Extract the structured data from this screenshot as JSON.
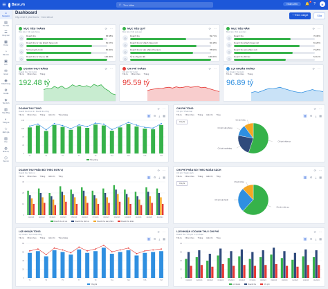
{
  "app": {
    "logo": "Base.vn",
    "search_placeholder": "Tìm kiếm",
    "user_pill": "Nhân viên",
    "notif_count": "1",
    "avatar": "N"
  },
  "sidebar": {
    "items": [
      {
        "icon": "⌂",
        "label": "Navigation"
      },
      {
        "icon": "▤",
        "label": "Tin nhắn"
      },
      {
        "icon": "☰",
        "label": "Công việc"
      },
      {
        "icon": "▦",
        "label": "Dự án"
      },
      {
        "icon": "◔",
        "label": "Báo cáo"
      },
      {
        "icon": "▣",
        "label": "Lịch"
      },
      {
        "icon": "✉",
        "label": "Email"
      },
      {
        "icon": "◉",
        "label": "Khách hàng"
      },
      {
        "icon": "⚙",
        "label": "Cài đặt"
      },
      {
        "icon": "◈",
        "label": "Tài chính"
      },
      {
        "icon": "▥",
        "label": "Hợp đồng"
      },
      {
        "icon": "◐",
        "label": "Thống kê"
      },
      {
        "icon": "☆",
        "label": "Đánh giá"
      },
      {
        "icon": "▧",
        "label": "Kho"
      },
      {
        "icon": "◍",
        "label": "Nhân sự"
      },
      {
        "icon": "⬡",
        "label": "Tiện ích"
      }
    ]
  },
  "header": {
    "title": "Dashboard",
    "subtitle": "Cập nhật 5 phút trước · Xem tất cả",
    "btn_primary": "+ Thêm widget",
    "btn_ghost": "Sửa"
  },
  "targets": [
    {
      "title": "Mục tiêu tháng",
      "subtitle": "Mục tiêu / Kết quả tháng",
      "rows": [
        {
          "label": "Doanh thu",
          "value": "95.58%",
          "pct": 0.95
        },
        {
          "label": "Doanh thu từ các khách hàng mới",
          "value": "81.67%",
          "pct": 0.81
        },
        {
          "label": "Số lượng KH mới",
          "value": "80.00%",
          "pct": 0.8
        },
        {
          "label": "Doanh thu từ lớp ưu đãi",
          "value": "100.00%",
          "pct": 1.0
        }
      ]
    },
    {
      "title": "Mục tiêu quý",
      "subtitle": "Mục tiêu / Kết quả quý",
      "rows": [
        {
          "label": "Doanh thu",
          "value": "69.71%",
          "pct": 0.69
        },
        {
          "label": "Doanh thu từ khách hàng mới",
          "value": "82.48%",
          "pct": 0.82
        },
        {
          "label": "Doanh thu từ sản phẩm Premium",
          "value": "78.60%",
          "pct": 0.78
        },
        {
          "label": "Tỷ lệ chuyển đổi",
          "value": "100.00%",
          "pct": 1.0
        }
      ]
    },
    {
      "title": "Mục tiêu năm",
      "subtitle": "Mục tiêu / Kết quả năm",
      "rows": [
        {
          "label": "Doanh thu",
          "value": "70.38%",
          "pct": 0.7
        },
        {
          "label": "Doanh thu khách hàng mới",
          "value": "81.28%",
          "pct": 0.81
        },
        {
          "label": "Doanh thu sản phẩm mới",
          "value": "73.25%",
          "pct": 0.73
        },
        {
          "label": "Doanh thu đối tác",
          "value": "64.14%",
          "pct": 0.64
        }
      ]
    }
  ],
  "kpis": [
    {
      "title": "Doanh thu tháng",
      "subtitle": "Doanh thu / Kỳ trước",
      "filters": [
        "Tất cả",
        "Nhóm theo",
        "Tháng"
      ],
      "value": "192.48 tỷ",
      "color": "#36b24a",
      "fill": "#c8ecd0",
      "points": [
        0.55,
        0.6,
        0.58,
        0.7,
        0.62,
        0.72,
        0.6,
        0.64,
        0.78,
        0.7,
        0.76,
        0.68,
        0.74,
        0.66,
        0.8,
        0.72,
        0.78,
        0.6,
        0.5,
        0.35,
        0.3
      ]
    },
    {
      "title": "Chi phí tháng",
      "subtitle": "Chi phí / Kỳ trước",
      "filters": [
        "Tất cả",
        "Nhóm theo",
        "Tháng"
      ],
      "value": "95.59 tỷ",
      "color": "#e53935",
      "fill": "#f8cdcd",
      "points": [
        0.5,
        0.55,
        0.58,
        0.62,
        0.6,
        0.64,
        0.66,
        0.62,
        0.68,
        0.64,
        0.66,
        0.7,
        0.66,
        0.68,
        0.7,
        0.64,
        0.66,
        0.6,
        0.55,
        0.5,
        0.45
      ]
    },
    {
      "title": "Lợi nhuận tháng",
      "subtitle": "Lợi nhuận / Kỳ trước",
      "filters": [
        "Tất cả",
        "Nhóm theo",
        "Tháng"
      ],
      "value": "96.89 tỷ",
      "color": "#2f8fe0",
      "fill": "#c9e2f7",
      "points": [
        0.4,
        0.45,
        0.42,
        0.48,
        0.55,
        0.6,
        0.58,
        0.62,
        0.66,
        0.6,
        0.55,
        0.5,
        0.45,
        0.42,
        0.4,
        0.45,
        0.5,
        0.55,
        0.5,
        0.48,
        0.45
      ]
    }
  ],
  "charts": {
    "revenue": {
      "title": "Doanh thu tổng",
      "subtitle": "Doanh thu thực tế / Doanh thu tổng",
      "filters": [
        "Tất cả",
        "Nhóm theo",
        "Tháng",
        "Hiển thị",
        "Tổng tháng"
      ],
      "legend": [
        "Tổng tăng"
      ],
      "chart_data": {
        "type": "bar",
        "categories": [
          "T1",
          "T2",
          "T3",
          "T4",
          "T5",
          "T6",
          "T7",
          "T8",
          "T9",
          "T10",
          "T11",
          "T12",
          "T13",
          "T14",
          "T15",
          "T16",
          "T17"
        ],
        "values": [
          110,
          118,
          95,
          120,
          112,
          100,
          115,
          108,
          122,
          118,
          96,
          110,
          125,
          114,
          105,
          102,
          120
        ],
        "ylim": [
          0,
          140
        ],
        "yticks": [
          "0",
          "35",
          "70",
          "105",
          "140"
        ]
      }
    },
    "expense": {
      "title": "Chi phí tổng",
      "subtitle": "Chi phí / Phân loại",
      "filters": [
        "Tất cả",
        "Nhóm theo",
        "Tháng",
        "Hiển thị",
        "Tổng"
      ],
      "select": "Chi phí",
      "slice_labels": [
        "Chi phí nhân sự",
        "Chi phí marketing",
        "Chi phí văn phòng",
        "Chi phí khác"
      ],
      "chart_data": {
        "type": "pie",
        "labels": [
          "Chi phí nhân sự",
          "Chi phí marketing",
          "Chi phí văn phòng",
          "Chi phí khác"
        ],
        "values": [
          55,
          23,
          12,
          10
        ],
        "colors": [
          "#36b24a",
          "#2f4a7c",
          "#2f8fe0",
          "#f5a623"
        ]
      }
    },
    "revenue_channel": {
      "title": "Doanh thu phân bổ theo đơn vị",
      "subtitle": "Doanh thu / Đơn vị",
      "filters": [
        "Tất cả",
        "Nhóm theo",
        "Tháng",
        "Hiển thị",
        "Tổng"
      ],
      "legend": [
        "Doanh thu dự án",
        "Doanh thu dịch vụ",
        "Doanh thu sản phẩm",
        "Doanh thu khác"
      ],
      "chart_data": {
        "type": "bar",
        "categories": [
          "01/2023",
          "02/2023",
          "03/2023",
          "04/2023",
          "05/2023",
          "06/2023",
          "07/2023",
          "08/2023",
          "09/2023",
          "10/2023",
          "11/2023",
          "12/2023",
          "01/2024"
        ],
        "series": [
          {
            "name": "Doanh thu dự án",
            "color": "#36b24a",
            "values": [
              22,
              24,
              20,
              26,
              23,
              25,
              22,
              24,
              27,
              23,
              21,
              25,
              24
            ]
          },
          {
            "name": "Doanh thu dịch vụ",
            "color": "#2f4a7c",
            "values": [
              18,
              20,
              17,
              21,
              19,
              22,
              18,
              20,
              23,
              19,
              17,
              21,
              20
            ]
          },
          {
            "name": "Doanh thu sản phẩm",
            "color": "#f5a623",
            "values": [
              15,
              16,
              14,
              18,
              16,
              17,
              15,
              16,
              19,
              16,
              14,
              17,
              16
            ]
          },
          {
            "name": "Doanh thu khác",
            "color": "#e53935",
            "values": [
              10,
              11,
              9,
              12,
              10,
              11,
              10,
              11,
              12,
              10,
              9,
              11,
              10
            ]
          }
        ],
        "ylim": [
          0,
          30
        ],
        "yticks": [
          "0",
          "10",
          "20",
          "30"
        ]
      }
    },
    "expense_split": {
      "title": "Chi phí phân bổ theo ngân sách",
      "subtitle": "Chi phí / Ngân sách",
      "filters": [
        "Tất cả",
        "Nhóm theo",
        "Tháng",
        "Hiển thị",
        "Tổng"
      ],
      "select": "Chi phí",
      "slice_labels": [
        "Chi phí nhân sự",
        "Chi phí vận hành",
        "Chi phí khác"
      ],
      "chart_data": {
        "type": "pie",
        "labels": [
          "Chi phí nhân sự",
          "Chi phí vận hành",
          "Chi phí khác"
        ],
        "values": [
          62,
          26,
          12
        ],
        "colors": [
          "#36b24a",
          "#2f8fe0",
          "#f5a623"
        ]
      }
    },
    "profit": {
      "title": "Lợi nhuận tổng",
      "subtitle": "Lợi nhuận / Lợi nhuận tổng",
      "filters": [
        "Tất cả",
        "Nhóm theo",
        "Tháng",
        "Hiển thị",
        "Tổng tháng"
      ],
      "legend": [
        "Tổng lãi"
      ],
      "chart_data": {
        "type": "bar",
        "categories": [
          "T1",
          "T2",
          "T3",
          "T4",
          "T5",
          "T6",
          "T7",
          "T8",
          "T9",
          "T10",
          "T11",
          "T12",
          "T13",
          "T14",
          "T15",
          "T16",
          "T17"
        ],
        "values": [
          58,
          62,
          50,
          64,
          60,
          54,
          66,
          58,
          62,
          70,
          56,
          60,
          64,
          52,
          58,
          60,
          62
        ],
        "ylim": [
          0,
          80
        ],
        "yticks": [
          "0",
          "20",
          "40",
          "60",
          "80"
        ]
      }
    },
    "profit_rev": {
      "title": "Lợi nhuận / Doanh thu / Chi phí",
      "subtitle": "Doanh thu / Chi phí / Lợi nhuận",
      "filters": [
        "Tất cả",
        "Nhóm theo",
        "Tháng",
        "Hiển thị",
        "Tổng"
      ],
      "legend": [
        "Lợi nhuận",
        "Doanh thu",
        "Chi phí"
      ],
      "chart_data": {
        "type": "bar",
        "categories": [
          "01/2023",
          "02/2023",
          "03/2023",
          "04/2023",
          "05/2023",
          "06/2023",
          "07/2023",
          "08/2023",
          "09/2023",
          "10/2023",
          "11/2023",
          "12/2023",
          "01/2024"
        ],
        "series": [
          {
            "name": "Lợi nhuận",
            "color": "#36b24a",
            "values": [
              22,
              24,
              20,
              26,
              23,
              25,
              22,
              24,
              27,
              23,
              21,
              25,
              24
            ]
          },
          {
            "name": "Doanh thu",
            "color": "#2f4a7c",
            "values": [
              30,
              32,
              28,
              34,
              31,
              33,
              30,
              32,
              35,
              31,
              29,
              33,
              32
            ]
          },
          {
            "name": "Chi phí",
            "color": "#e53935",
            "values": [
              14,
              15,
              13,
              16,
              14,
              15,
              14,
              15,
              16,
              14,
              13,
              15,
              15
            ]
          }
        ],
        "ylim": [
          0,
          40
        ],
        "yticks": [
          "0",
          "10",
          "20",
          "30",
          "40"
        ]
      }
    }
  }
}
